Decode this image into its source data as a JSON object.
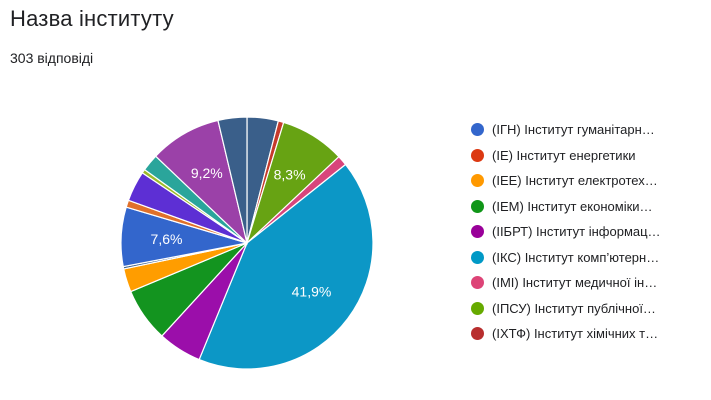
{
  "header": {
    "title": "Назва інституту",
    "responses": "303 відповіді"
  },
  "chart_data": {
    "type": "pie",
    "title": "Назва інституту",
    "start_angle_deg": 0,
    "legend_position": "right",
    "slices": [
      {
        "label": "(ІГН) Інститут гуманітарн…",
        "value": 4.0,
        "color": "#3a5f8a",
        "data_label": ""
      },
      {
        "label": "(ІЕ) Інститут енергетики",
        "value": 0.7,
        "color": "#c53a2b",
        "data_label": ""
      },
      {
        "label": "",
        "value": 8.3,
        "color": "#67a313",
        "data_label": "8,3%"
      },
      {
        "label": "",
        "value": 1.3,
        "color": "#d8457b",
        "data_label": ""
      },
      {
        "label": "",
        "value": 41.9,
        "color": "#0c97c6",
        "data_label": "41,9%"
      },
      {
        "label": "",
        "value": 5.6,
        "color": "#9b0eaa",
        "data_label": ""
      },
      {
        "label": "(ІЕМ) Інститут економіки…",
        "value": 6.9,
        "color": "#13941f",
        "data_label": ""
      },
      {
        "label": "(ІЕЕ) Інститут електротех…",
        "value": 3.0,
        "color": "#ff9d00",
        "data_label": ""
      },
      {
        "label": "",
        "value": 0.3,
        "color": "#3a5f8a",
        "data_label": ""
      },
      {
        "label": "",
        "value": 7.6,
        "color": "#3366cc",
        "data_label": "7,6%"
      },
      {
        "label": "",
        "value": 0.9,
        "color": "#e0702a",
        "data_label": ""
      },
      {
        "label": "",
        "value": 3.9,
        "color": "#5d2fd4",
        "data_label": ""
      },
      {
        "label": "",
        "value": 0.5,
        "color": "#9dbb2a",
        "data_label": ""
      },
      {
        "label": "",
        "value": 2.2,
        "color": "#2aa59b",
        "data_label": ""
      },
      {
        "label": "",
        "value": 9.2,
        "color": "#9b41a8",
        "data_label": "9,2%"
      },
      {
        "label": "",
        "value": 3.7,
        "color": "#3a5f8a",
        "data_label": ""
      }
    ],
    "legend": [
      {
        "label": "(ІГН) Інститут гуманітарн…",
        "color": "#3366cc"
      },
      {
        "label": "(ІЕ) Інститут енергетики",
        "color": "#dc3912"
      },
      {
        "label": "(ІЕЕ) Інститут електротех…",
        "color": "#ff9900"
      },
      {
        "label": "(ІЕМ) Інститут економіки…",
        "color": "#109618"
      },
      {
        "label": "(ІІБРТ) Інститут інформац…",
        "color": "#990099"
      },
      {
        "label": "(ІКС) Інститут комп’ютерн…",
        "color": "#0099c6"
      },
      {
        "label": "(ІМІ) Інститут медичної ін…",
        "color": "#dd4477"
      },
      {
        "label": "(ІПСУ) Інститут публічної…",
        "color": "#66aa00"
      },
      {
        "label": "(ІХТФ) Інститут хімічних т…",
        "color": "#b82e2e"
      }
    ]
  }
}
